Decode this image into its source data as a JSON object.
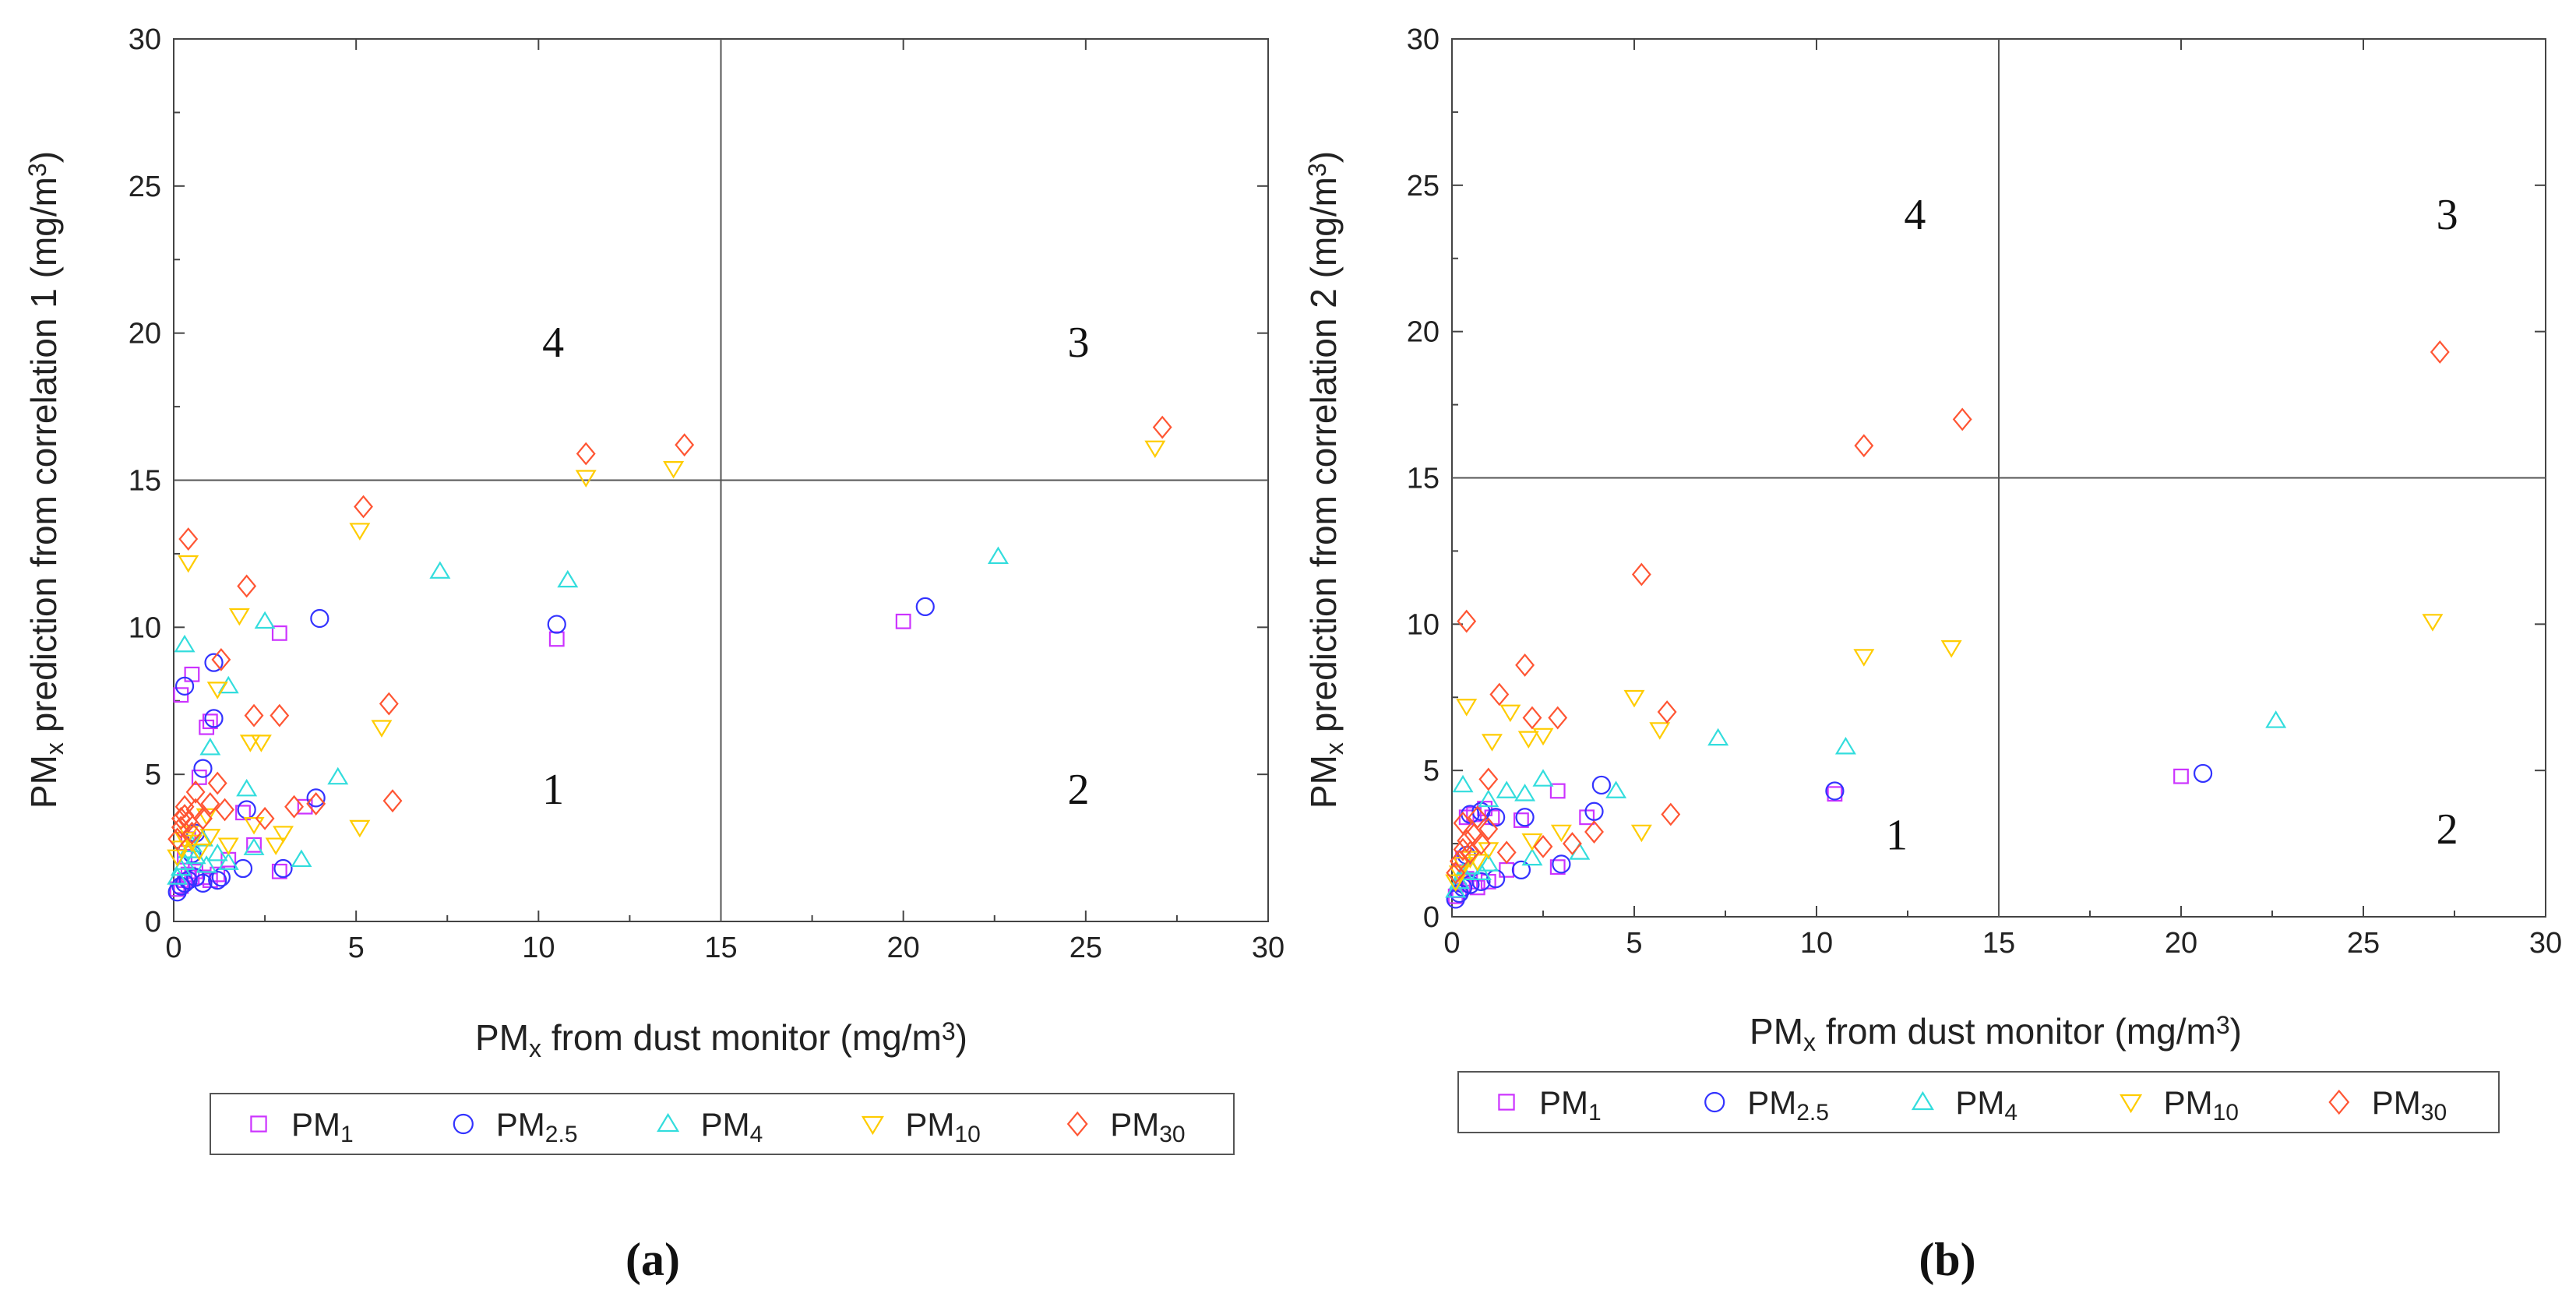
{
  "chart_data": [
    {
      "type": "scatter",
      "panel_label": "(a)",
      "xlabel": {
        "base": "PM",
        "sub": "x",
        "rest": " from dust monitor (mg/m",
        "sup": "3",
        "end": ")"
      },
      "ylabel": {
        "base": "PM",
        "sub": "x",
        "rest": " prediction from correlation 1 (mg/m",
        "sup": "3",
        "end": ")"
      },
      "xlim": [
        0,
        30
      ],
      "ylim": [
        0,
        30
      ],
      "xticks": [
        "0",
        "5",
        "10",
        "15",
        "20",
        "25",
        "30"
      ],
      "yticks": [
        "0",
        "5",
        "10",
        "15",
        "20",
        "25",
        "30"
      ],
      "divider_x": 15,
      "divider_y": 15,
      "quadrants": [
        {
          "text": "1",
          "x": 10.4,
          "y": 4.0
        },
        {
          "text": "2",
          "x": 24.8,
          "y": 4.0
        },
        {
          "text": "3",
          "x": 24.8,
          "y": 19.2
        },
        {
          "text": "4",
          "x": 10.4,
          "y": 19.2
        }
      ],
      "series": [
        {
          "name": "PM1",
          "label": "PM",
          "sub": "1",
          "marker": "square",
          "color": "#cc33ff",
          "points": [
            [
              0.1,
              1.1
            ],
            [
              0.2,
              1.2
            ],
            [
              0.3,
              1.4
            ],
            [
              0.4,
              1.6
            ],
            [
              0.5,
              1.5
            ],
            [
              0.6,
              1.7
            ],
            [
              0.8,
              1.5
            ],
            [
              1.0,
              1.4
            ],
            [
              1.2,
              1.6
            ],
            [
              0.2,
              7.7
            ],
            [
              0.5,
              8.4
            ],
            [
              0.7,
              4.9
            ],
            [
              0.9,
              6.6
            ],
            [
              1.0,
              6.8
            ],
            [
              1.9,
              3.7
            ],
            [
              2.9,
              1.7
            ],
            [
              2.9,
              9.8
            ],
            [
              3.6,
              3.9
            ],
            [
              10.5,
              9.6
            ],
            [
              20.0,
              10.2
            ],
            [
              0.3,
              2.2
            ],
            [
              0.4,
              2.8
            ],
            [
              1.5,
              2.1
            ],
            [
              2.2,
              2.6
            ]
          ]
        },
        {
          "name": "PM2.5",
          "label": "PM",
          "sub": "2.5",
          "marker": "circle",
          "color": "#3333ff",
          "points": [
            [
              0.1,
              1.0
            ],
            [
              0.2,
              1.2
            ],
            [
              0.3,
              1.3
            ],
            [
              0.4,
              1.4
            ],
            [
              0.6,
              1.5
            ],
            [
              0.8,
              1.3
            ],
            [
              1.2,
              1.4
            ],
            [
              1.3,
              1.5
            ],
            [
              1.9,
              1.8
            ],
            [
              0.3,
              8.0
            ],
            [
              0.8,
              5.2
            ],
            [
              1.1,
              6.9
            ],
            [
              1.1,
              8.8
            ],
            [
              2.0,
              3.8
            ],
            [
              3.0,
              1.8
            ],
            [
              3.9,
              4.2
            ],
            [
              4.0,
              10.3
            ],
            [
              10.5,
              10.1
            ],
            [
              20.6,
              10.7
            ],
            [
              0.5,
              2.3
            ],
            [
              0.6,
              3.0
            ]
          ]
        },
        {
          "name": "PM4",
          "label": "PM",
          "sub": "4",
          "marker": "triangle-up",
          "color": "#33dddd",
          "points": [
            [
              0.1,
              1.5
            ],
            [
              0.2,
              1.8
            ],
            [
              0.3,
              2.0
            ],
            [
              0.4,
              2.4
            ],
            [
              0.5,
              2.6
            ],
            [
              0.6,
              2.2
            ],
            [
              0.9,
              1.9
            ],
            [
              1.2,
              2.3
            ],
            [
              1.5,
              2.0
            ],
            [
              0.3,
              9.4
            ],
            [
              1.0,
              5.9
            ],
            [
              1.5,
              8.0
            ],
            [
              2.0,
              4.5
            ],
            [
              2.5,
              10.2
            ],
            [
              3.5,
              2.1
            ],
            [
              4.5,
              4.9
            ],
            [
              7.3,
              11.9
            ],
            [
              10.8,
              11.6
            ],
            [
              22.6,
              12.4
            ],
            [
              2.2,
              2.5
            ],
            [
              0.8,
              2.8
            ]
          ]
        },
        {
          "name": "PM10",
          "label": "PM",
          "sub": "10",
          "marker": "triangle-down",
          "color": "#ffcc00",
          "points": [
            [
              0.1,
              2.2
            ],
            [
              0.2,
              2.5
            ],
            [
              0.3,
              2.8
            ],
            [
              0.4,
              3.0
            ],
            [
              0.5,
              2.7
            ],
            [
              0.7,
              2.4
            ],
            [
              1.0,
              2.9
            ],
            [
              1.5,
              2.6
            ],
            [
              0.4,
              12.2
            ],
            [
              1.2,
              7.9
            ],
            [
              1.8,
              10.4
            ],
            [
              2.1,
              6.1
            ],
            [
              2.4,
              6.1
            ],
            [
              3.0,
              3.0
            ],
            [
              5.1,
              13.3
            ],
            [
              5.1,
              3.2
            ],
            [
              5.7,
              6.6
            ],
            [
              11.3,
              15.1
            ],
            [
              13.7,
              15.4
            ],
            [
              26.9,
              16.1
            ],
            [
              2.2,
              3.3
            ],
            [
              2.8,
              2.6
            ],
            [
              0.9,
              3.6
            ]
          ]
        },
        {
          "name": "PM30",
          "label": "PM",
          "sub": "30",
          "marker": "diamond",
          "color": "#ff5533",
          "points": [
            [
              0.1,
              2.8
            ],
            [
              0.2,
              3.2
            ],
            [
              0.3,
              3.6
            ],
            [
              0.4,
              3.4
            ],
            [
              0.5,
              3.0
            ],
            [
              0.6,
              3.8
            ],
            [
              0.8,
              3.5
            ],
            [
              1.0,
              4.0
            ],
            [
              0.3,
              3.9
            ],
            [
              0.2,
              3.5
            ],
            [
              0.4,
              13.0
            ],
            [
              1.2,
              4.7
            ],
            [
              1.3,
              8.9
            ],
            [
              2.0,
              11.4
            ],
            [
              2.2,
              7.0
            ],
            [
              2.5,
              3.5
            ],
            [
              2.9,
              7.0
            ],
            [
              3.3,
              3.9
            ],
            [
              3.9,
              4.0
            ],
            [
              5.2,
              14.1
            ],
            [
              5.9,
              7.4
            ],
            [
              6.0,
              4.1
            ],
            [
              11.3,
              15.9
            ],
            [
              14.0,
              16.2
            ],
            [
              27.1,
              16.8
            ],
            [
              1.4,
              3.8
            ],
            [
              0.6,
              4.4
            ]
          ]
        }
      ]
    },
    {
      "type": "scatter",
      "panel_label": "(b)",
      "xlabel": {
        "base": "PM",
        "sub": "x",
        "rest": " from dust monitor (mg/m",
        "sup": "3",
        "end": ")"
      },
      "ylabel": {
        "base": "PM",
        "sub": "x",
        "rest": " prediction from correlation 2 (mg/m",
        "sup": "3",
        "end": ")"
      },
      "xlim": [
        0,
        30
      ],
      "ylim": [
        0,
        30
      ],
      "xticks": [
        "0",
        "5",
        "10",
        "15",
        "20",
        "25",
        "30"
      ],
      "yticks": [
        "0",
        "5",
        "10",
        "15",
        "20",
        "25",
        "30"
      ],
      "divider_x": 15,
      "divider_y": 15,
      "quadrants": [
        {
          "text": "1",
          "x": 12.2,
          "y": 2.3
        },
        {
          "text": "2",
          "x": 27.3,
          "y": 2.5
        },
        {
          "text": "3",
          "x": 27.3,
          "y": 23.5
        },
        {
          "text": "4",
          "x": 12.7,
          "y": 23.5
        }
      ],
      "series": [
        {
          "name": "PM1",
          "label": "PM",
          "sub": "1",
          "marker": "square",
          "color": "#cc33ff",
          "points": [
            [
              0.1,
              0.7
            ],
            [
              0.2,
              0.9
            ],
            [
              0.3,
              1.1
            ],
            [
              0.4,
              1.3
            ],
            [
              0.5,
              1.2
            ],
            [
              0.7,
              1.0
            ],
            [
              1.0,
              1.2
            ],
            [
              0.4,
              3.4
            ],
            [
              0.6,
              3.5
            ],
            [
              0.9,
              3.7
            ],
            [
              1.1,
              3.4
            ],
            [
              1.9,
              3.3
            ],
            [
              2.9,
              1.7
            ],
            [
              2.9,
              4.3
            ],
            [
              3.7,
              3.4
            ],
            [
              10.5,
              4.2
            ],
            [
              20.0,
              4.8
            ],
            [
              0.3,
              2.0
            ],
            [
              1.5,
              1.6
            ]
          ]
        },
        {
          "name": "PM2.5",
          "label": "PM",
          "sub": "2.5",
          "marker": "circle",
          "color": "#3333ff",
          "points": [
            [
              0.1,
              0.6
            ],
            [
              0.2,
              0.8
            ],
            [
              0.3,
              1.0
            ],
            [
              0.5,
              1.1
            ],
            [
              0.8,
              1.2
            ],
            [
              1.2,
              1.3
            ],
            [
              1.9,
              1.6
            ],
            [
              0.5,
              3.5
            ],
            [
              0.8,
              3.6
            ],
            [
              1.2,
              3.4
            ],
            [
              2.0,
              3.4
            ],
            [
              3.0,
              1.8
            ],
            [
              3.9,
              3.6
            ],
            [
              4.1,
              4.5
            ],
            [
              10.5,
              4.3
            ],
            [
              20.6,
              4.9
            ],
            [
              0.4,
              2.1
            ]
          ]
        },
        {
          "name": "PM4",
          "label": "PM",
          "sub": "4",
          "marker": "triangle-up",
          "color": "#33dddd",
          "points": [
            [
              0.1,
              0.9
            ],
            [
              0.2,
              1.2
            ],
            [
              0.3,
              1.5
            ],
            [
              0.5,
              1.7
            ],
            [
              0.8,
              1.5
            ],
            [
              1.0,
              1.8
            ],
            [
              0.3,
              4.5
            ],
            [
              1.0,
              4.0
            ],
            [
              1.5,
              4.3
            ],
            [
              2.0,
              4.2
            ],
            [
              2.5,
              4.7
            ],
            [
              3.5,
              2.2
            ],
            [
              4.5,
              4.3
            ],
            [
              7.3,
              6.1
            ],
            [
              10.8,
              5.8
            ],
            [
              22.6,
              6.7
            ],
            [
              2.2,
              2.0
            ]
          ]
        },
        {
          "name": "PM10",
          "label": "PM",
          "sub": "10",
          "marker": "triangle-down",
          "color": "#ffcc00",
          "points": [
            [
              0.1,
              1.2
            ],
            [
              0.2,
              1.5
            ],
            [
              0.3,
              1.8
            ],
            [
              0.5,
              2.0
            ],
            [
              0.7,
              1.9
            ],
            [
              1.0,
              2.3
            ],
            [
              0.4,
              7.2
            ],
            [
              1.1,
              6.0
            ],
            [
              1.6,
              7.0
            ],
            [
              2.1,
              6.1
            ],
            [
              2.5,
              6.2
            ],
            [
              3.0,
              2.9
            ],
            [
              5.0,
              7.5
            ],
            [
              5.2,
              2.9
            ],
            [
              5.7,
              6.4
            ],
            [
              11.3,
              8.9
            ],
            [
              13.7,
              9.2
            ],
            [
              26.9,
              10.1
            ],
            [
              2.2,
              2.6
            ]
          ]
        },
        {
          "name": "PM30",
          "label": "PM",
          "sub": "30",
          "marker": "diamond",
          "color": "#ff5533",
          "points": [
            [
              0.1,
              1.5
            ],
            [
              0.2,
              1.9
            ],
            [
              0.3,
              2.3
            ],
            [
              0.4,
              2.6
            ],
            [
              0.5,
              2.2
            ],
            [
              0.6,
              2.8
            ],
            [
              0.8,
              2.5
            ],
            [
              1.0,
              3.0
            ],
            [
              0.3,
              3.2
            ],
            [
              0.4,
              10.1
            ],
            [
              1.0,
              4.7
            ],
            [
              1.3,
              7.6
            ],
            [
              2.0,
              8.6
            ],
            [
              2.2,
              6.8
            ],
            [
              2.5,
              2.4
            ],
            [
              2.9,
              6.8
            ],
            [
              3.3,
              2.5
            ],
            [
              3.9,
              2.9
            ],
            [
              5.2,
              11.7
            ],
            [
              5.9,
              7.0
            ],
            [
              6.0,
              3.5
            ],
            [
              11.3,
              16.1
            ],
            [
              14.0,
              17.0
            ],
            [
              27.1,
              19.3
            ],
            [
              1.5,
              2.2
            ],
            [
              0.7,
              3.4
            ]
          ]
        }
      ]
    }
  ]
}
